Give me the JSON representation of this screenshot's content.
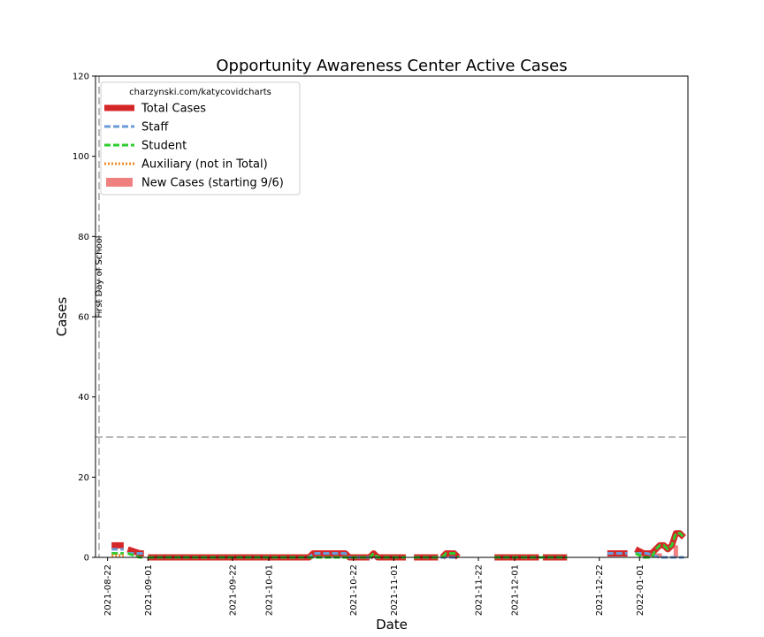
{
  "chart_data": {
    "type": "line",
    "title": "Opportunity Awareness Center Active Cases",
    "xlabel": "Date",
    "ylabel": "Cases",
    "ylim": [
      0,
      120
    ],
    "xlim": [
      "2021-08-19",
      "2022-01-13"
    ],
    "yticks": [
      0,
      20,
      40,
      60,
      80,
      100,
      120
    ],
    "xticks": [
      "2021-08-22",
      "2021-09-01",
      "2021-09-22",
      "2021-10-01",
      "2021-10-22",
      "2021-11-01",
      "2021-11-22",
      "2021-12-01",
      "2021-12-22",
      "2022-01-01"
    ],
    "hline": 30,
    "vline": {
      "x": "2021-08-19",
      "label": "First Day of School"
    },
    "legend": {
      "placement": "top-left",
      "title": "charzynski.com/katycovidcharts",
      "entries": [
        "Total Cases",
        "Staff",
        "Student",
        "Auxiliary (not in Total)",
        "New Cases (starting 9/6)"
      ]
    },
    "colors": {
      "total": "#d62728",
      "staff": "#6a9bd8",
      "student": "#2ecc2e",
      "auxiliary": "#f28c28",
      "new_cases": "#f08080",
      "reference": "#bbbbbb"
    },
    "series": [
      {
        "name": "Total Cases",
        "segments": [
          {
            "x": [
              "2021-08-23",
              "2021-08-26"
            ],
            "y": [
              3,
              3
            ]
          },
          {
            "x": [
              "2021-08-27",
              "2021-08-30",
              "2021-08-31"
            ],
            "y": [
              2,
              1,
              1
            ]
          },
          {
            "x": [
              "2021-09-01",
              "2021-10-11",
              "2021-10-12",
              "2021-10-20",
              "2021-10-21",
              "2021-10-26"
            ],
            "y": [
              0,
              0,
              1,
              1,
              0,
              0
            ]
          },
          {
            "x": [
              "2021-10-26",
              "2021-10-27",
              "2021-10-28",
              "2021-11-04"
            ],
            "y": [
              0,
              1,
              0,
              0
            ]
          },
          {
            "x": [
              "2021-11-06",
              "2021-11-12"
            ],
            "y": [
              0,
              0
            ]
          },
          {
            "x": [
              "2021-11-13",
              "2021-11-14",
              "2021-11-16",
              "2021-11-17"
            ],
            "y": [
              0,
              1,
              1,
              0
            ]
          },
          {
            "x": [
              "2021-11-26",
              "2021-12-04"
            ],
            "y": [
              0,
              0
            ]
          },
          {
            "x": [
              "2021-12-04",
              "2021-12-07"
            ],
            "y": [
              0,
              0
            ]
          },
          {
            "x": [
              "2021-12-08",
              "2021-12-14"
            ],
            "y": [
              0,
              0
            ]
          },
          {
            "x": [
              "2021-12-24",
              "2021-12-29"
            ],
            "y": [
              1,
              1
            ]
          },
          {
            "x": [
              "2021-12-31",
              "2022-01-02",
              "2022-01-03",
              "2022-01-04"
            ],
            "y": [
              2,
              1,
              1,
              1
            ]
          },
          {
            "x": [
              "2022-01-04",
              "2022-01-05",
              "2022-01-06",
              "2022-01-07",
              "2022-01-08",
              "2022-01-09",
              "2022-01-10",
              "2022-01-11",
              "2022-01-12"
            ],
            "y": [
              1,
              2,
              3,
              3,
              2,
              3,
              6,
              6,
              5
            ]
          }
        ]
      },
      {
        "name": "Staff",
        "segments": [
          {
            "x": [
              "2021-08-23",
              "2021-08-26"
            ],
            "y": [
              2,
              2
            ]
          },
          {
            "x": [
              "2021-08-27",
              "2021-08-30",
              "2021-08-31"
            ],
            "y": [
              1,
              1,
              1
            ]
          },
          {
            "x": [
              "2021-09-01",
              "2021-10-11",
              "2021-10-12",
              "2021-10-20",
              "2021-10-21",
              "2021-11-04"
            ],
            "y": [
              0,
              0,
              1,
              1,
              0,
              0
            ]
          },
          {
            "x": [
              "2021-11-06",
              "2021-11-17"
            ],
            "y": [
              0,
              0
            ]
          },
          {
            "x": [
              "2021-11-26",
              "2021-12-14"
            ],
            "y": [
              0,
              0
            ]
          },
          {
            "x": [
              "2021-12-24",
              "2021-12-29"
            ],
            "y": [
              1,
              1
            ]
          },
          {
            "x": [
              "2021-12-31",
              "2022-01-02",
              "2022-01-03",
              "2022-01-06",
              "2022-01-07",
              "2022-01-12"
            ],
            "y": [
              1,
              1,
              1,
              0,
              0,
              0
            ]
          }
        ]
      },
      {
        "name": "Student",
        "segments": [
          {
            "x": [
              "2021-08-23",
              "2021-08-26"
            ],
            "y": [
              1,
              1
            ]
          },
          {
            "x": [
              "2021-08-27",
              "2021-08-30",
              "2021-08-31"
            ],
            "y": [
              1,
              0,
              0
            ]
          },
          {
            "x": [
              "2021-09-01",
              "2021-10-26",
              "2021-10-27",
              "2021-10-28",
              "2021-11-04"
            ],
            "y": [
              0,
              0,
              1,
              0,
              0
            ]
          },
          {
            "x": [
              "2021-11-06",
              "2021-11-12"
            ],
            "y": [
              0,
              0
            ]
          },
          {
            "x": [
              "2021-11-13",
              "2021-11-14",
              "2021-11-16",
              "2021-11-17"
            ],
            "y": [
              0,
              1,
              1,
              0
            ]
          },
          {
            "x": [
              "2021-11-26",
              "2021-12-14"
            ],
            "y": [
              0,
              0
            ]
          },
          {
            "x": [
              "2021-12-31",
              "2022-01-02",
              "2022-01-04",
              "2022-01-05",
              "2022-01-06",
              "2022-01-07",
              "2022-01-08",
              "2022-01-09",
              "2022-01-10",
              "2022-01-11",
              "2022-01-12"
            ],
            "y": [
              1,
              0,
              0,
              2,
              3,
              3,
              2,
              3,
              6,
              6,
              5
            ]
          }
        ]
      },
      {
        "name": "Auxiliary (not in Total)",
        "segments": [
          {
            "x": [
              "2021-08-23",
              "2021-08-26"
            ],
            "y": [
              0.5,
              0.5
            ]
          }
        ]
      },
      {
        "name": "New Cases (starting 9/6)",
        "bars": [
          {
            "x": "2022-01-05",
            "y": 1
          },
          {
            "x": "2022-01-06",
            "y": 1
          },
          {
            "x": "2022-01-10",
            "y": 3
          }
        ]
      }
    ]
  }
}
